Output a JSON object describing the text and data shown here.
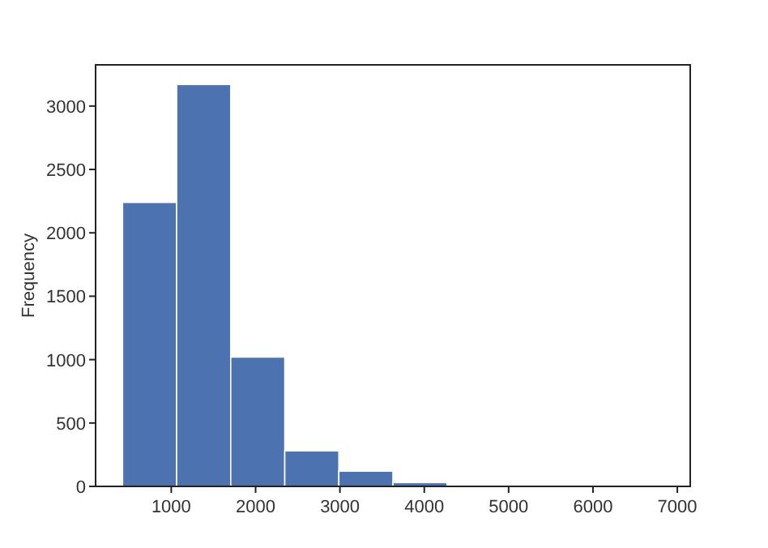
{
  "chart_data": {
    "type": "histogram",
    "ylabel": "Frequency",
    "color": "#4c72b0",
    "bins": [
      423,
      1064,
      1705,
      2346,
      2987,
      3628,
      4269,
      4910,
      5551,
      6192,
      6833
    ],
    "values": [
      2240,
      3170,
      1020,
      280,
      120,
      30,
      0,
      0,
      0,
      0
    ],
    "xlim": [
      103,
      7153
    ],
    "xticks": [
      1000,
      2000,
      3000,
      4000,
      5000,
      6000,
      7000
    ],
    "ylim": [
      0,
      3325
    ],
    "yticks": [
      0,
      500,
      1000,
      1500,
      2000,
      2500,
      3000
    ],
    "grid": false
  }
}
